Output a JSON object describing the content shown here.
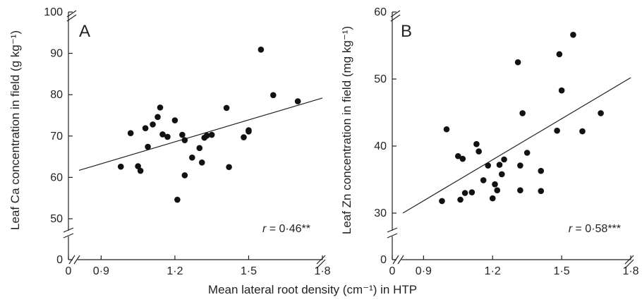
{
  "xlabel": "Mean lateral root density (cm⁻¹) in HTP",
  "chart_data": [
    {
      "type": "scatter",
      "panel": "A",
      "ylabel": "Leaf Ca concentration  in field (g kg⁻¹)",
      "xlim": [
        0,
        1.8
      ],
      "ylim": [
        0,
        100
      ],
      "axis_break": {
        "x": true,
        "y": true
      },
      "x_ticks": [
        0,
        0.9,
        1.2,
        1.5,
        1.8
      ],
      "x_tick_labels": [
        "0",
        "0·9",
        "1·2",
        "1·5",
        "1·8"
      ],
      "y_ticks": [
        0,
        50,
        60,
        70,
        80,
        90,
        100
      ],
      "y_tick_labels": [
        "0",
        "50",
        "60",
        "70",
        "80",
        "90",
        "100"
      ],
      "r_prefix": "r",
      "r_value": "= 0·46**",
      "regression": {
        "x1": 0.81,
        "y1": 61.7,
        "x2": 1.8,
        "y2": 79.2
      },
      "points": [
        {
          "x": 0.98,
          "y": 62.6
        },
        {
          "x": 1.02,
          "y": 70.7
        },
        {
          "x": 1.05,
          "y": 62.7
        },
        {
          "x": 1.06,
          "y": 61.6
        },
        {
          "x": 1.08,
          "y": 71.9
        },
        {
          "x": 1.09,
          "y": 67.4
        },
        {
          "x": 1.11,
          "y": 72.8
        },
        {
          "x": 1.13,
          "y": 74.6
        },
        {
          "x": 1.14,
          "y": 76.9
        },
        {
          "x": 1.15,
          "y": 70.4
        },
        {
          "x": 1.17,
          "y": 69.8
        },
        {
          "x": 1.2,
          "y": 73.8
        },
        {
          "x": 1.21,
          "y": 54.6
        },
        {
          "x": 1.23,
          "y": 70.3
        },
        {
          "x": 1.24,
          "y": 69.0
        },
        {
          "x": 1.24,
          "y": 60.5
        },
        {
          "x": 1.27,
          "y": 64.8
        },
        {
          "x": 1.3,
          "y": 67.1
        },
        {
          "x": 1.31,
          "y": 63.6
        },
        {
          "x": 1.32,
          "y": 69.6
        },
        {
          "x": 1.33,
          "y": 70.1
        },
        {
          "x": 1.35,
          "y": 70.3
        },
        {
          "x": 1.41,
          "y": 76.8
        },
        {
          "x": 1.42,
          "y": 62.5
        },
        {
          "x": 1.48,
          "y": 69.7
        },
        {
          "x": 1.5,
          "y": 71.4
        },
        {
          "x": 1.5,
          "y": 71.1
        },
        {
          "x": 1.55,
          "y": 90.9
        },
        {
          "x": 1.6,
          "y": 79.9
        },
        {
          "x": 1.7,
          "y": 78.4
        }
      ]
    },
    {
      "type": "scatter",
      "panel": "B",
      "ylabel": "Leaf Zn concentration in field (mg kg⁻¹)",
      "xlim": [
        0,
        1.8
      ],
      "ylim": [
        0,
        60
      ],
      "axis_break": {
        "x": true,
        "y": true
      },
      "x_ticks": [
        0,
        0.9,
        1.2,
        1.5,
        1.8
      ],
      "x_tick_labels": [
        "0",
        "0·9",
        "1·2",
        "1·5",
        "1·8"
      ],
      "y_ticks": [
        0,
        30,
        40,
        50,
        60
      ],
      "y_tick_labels": [
        "0",
        "30",
        "40",
        "50",
        "60"
      ],
      "r_prefix": "r",
      "r_value": "= 0·58***",
      "regression": {
        "x1": 0.81,
        "y1": 29.5,
        "x2": 1.8,
        "y2": 50.2
      },
      "points": [
        {
          "x": 0.98,
          "y": 31.8
        },
        {
          "x": 1.0,
          "y": 42.5
        },
        {
          "x": 1.05,
          "y": 38.5
        },
        {
          "x": 1.06,
          "y": 32.0
        },
        {
          "x": 1.07,
          "y": 38.1
        },
        {
          "x": 1.08,
          "y": 33.0
        },
        {
          "x": 1.11,
          "y": 33.1
        },
        {
          "x": 1.13,
          "y": 40.3
        },
        {
          "x": 1.14,
          "y": 39.2
        },
        {
          "x": 1.16,
          "y": 34.9
        },
        {
          "x": 1.18,
          "y": 37.1
        },
        {
          "x": 1.2,
          "y": 32.2
        },
        {
          "x": 1.21,
          "y": 34.3
        },
        {
          "x": 1.22,
          "y": 33.4
        },
        {
          "x": 1.23,
          "y": 37.2
        },
        {
          "x": 1.24,
          "y": 35.8
        },
        {
          "x": 1.25,
          "y": 38.0
        },
        {
          "x": 1.31,
          "y": 52.5
        },
        {
          "x": 1.32,
          "y": 33.4
        },
        {
          "x": 1.32,
          "y": 37.1
        },
        {
          "x": 1.33,
          "y": 44.9
        },
        {
          "x": 1.35,
          "y": 39.0
        },
        {
          "x": 1.41,
          "y": 36.3
        },
        {
          "x": 1.41,
          "y": 33.3
        },
        {
          "x": 1.48,
          "y": 42.3
        },
        {
          "x": 1.49,
          "y": 53.7
        },
        {
          "x": 1.5,
          "y": 48.3
        },
        {
          "x": 1.55,
          "y": 56.6
        },
        {
          "x": 1.59,
          "y": 42.2
        },
        {
          "x": 1.67,
          "y": 44.9
        }
      ]
    }
  ]
}
